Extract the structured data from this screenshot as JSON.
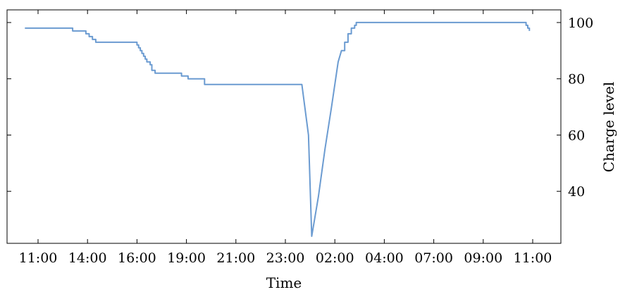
{
  "chart_data": {
    "type": "line",
    "title": "",
    "xlabel": "Time",
    "ylabel": "Charge level",
    "x_tick_labels": [
      "11:00",
      "14:00",
      "16:00",
      "19:00",
      "21:00",
      "23:00",
      "02:00",
      "04:00",
      "07:00",
      "09:00",
      "11:00"
    ],
    "y_ticks": [
      40,
      60,
      80,
      100
    ],
    "y_axis_side": "right",
    "ylim": [
      21.5,
      104.5
    ],
    "grid": false,
    "legend": "none",
    "line_color": "#6b9bd1",
    "series": [
      {
        "x_time": [
          "10:20",
          "12:40",
          "12:45",
          "13:20",
          "13:25",
          "13:35",
          "13:45",
          "13:55",
          "15:50",
          "16:00",
          "16:05",
          "16:10",
          "16:15",
          "16:20",
          "16:25",
          "16:30",
          "16:40",
          "16:45",
          "16:55",
          "17:00",
          "17:05",
          "18:10",
          "18:15",
          "18:30",
          "18:35",
          "19:20",
          "19:25",
          "00:20",
          "00:40",
          "00:50",
          "01:10",
          "01:30",
          "01:50",
          "02:10",
          "02:20",
          "02:30",
          "02:40",
          "02:50",
          "03:00",
          "03:05",
          "11:30",
          "11:35",
          "11:40",
          "11:45",
          "11:50"
        ],
        "y": [
          98,
          98,
          97,
          97,
          96,
          95,
          94,
          93,
          93,
          92,
          91,
          90,
          89,
          88,
          87,
          86,
          85,
          83,
          82,
          82,
          82,
          82,
          81,
          81,
          80,
          80,
          78,
          78,
          60,
          24,
          38,
          55,
          70,
          86,
          90,
          93,
          96,
          98,
          99,
          100,
          100,
          100,
          99,
          98,
          97
        ]
      }
    ]
  }
}
